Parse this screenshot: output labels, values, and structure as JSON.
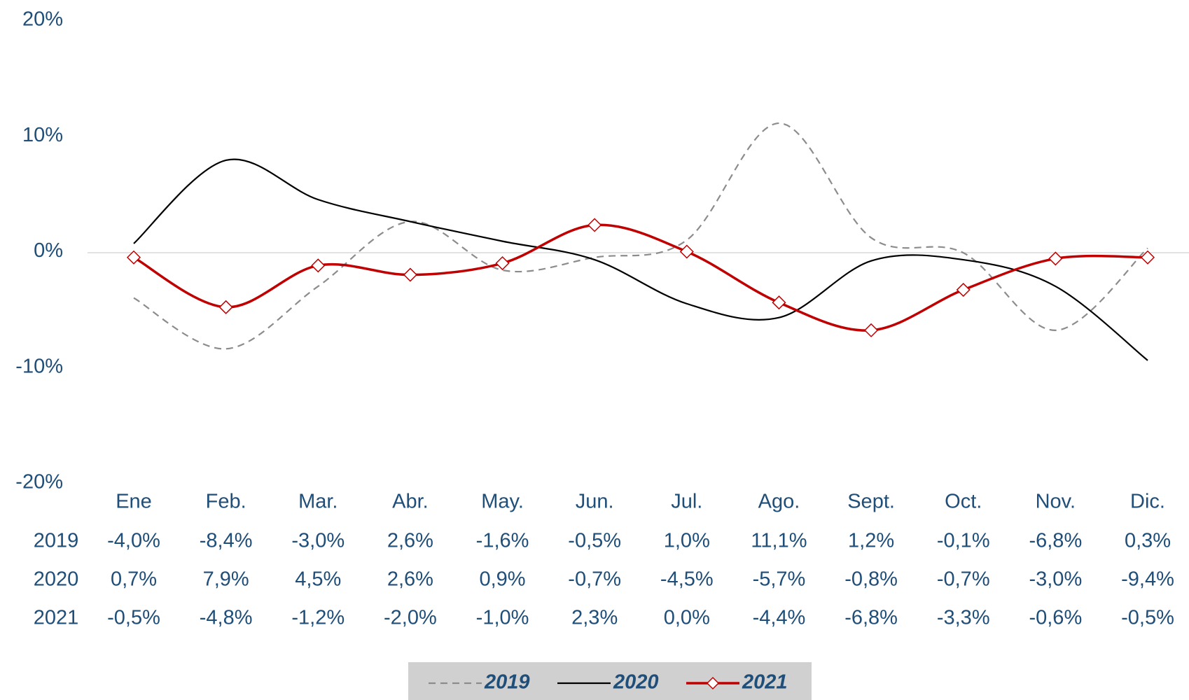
{
  "chart_data": {
    "type": "line",
    "categories": [
      "Ene",
      "Feb.",
      "Mar.",
      "Abr.",
      "May.",
      "Jun.",
      "Jul.",
      "Ago.",
      "Sept.",
      "Oct.",
      "Nov.",
      "Dic."
    ],
    "series": [
      {
        "name": "2019",
        "color": "#8c8c8c",
        "line_style": "dashed",
        "marker": "none",
        "values": [
          -4.0,
          -8.4,
          -3.0,
          2.6,
          -1.6,
          -0.5,
          1.0,
          11.1,
          1.2,
          -0.1,
          -6.8,
          0.3
        ],
        "value_labels": [
          "-4,0%",
          "-8,4%",
          "-3,0%",
          "2,6%",
          "-1,6%",
          "-0,5%",
          "1,0%",
          "11,1%",
          "1,2%",
          "-0,1%",
          "-6,8%",
          "0,3%"
        ]
      },
      {
        "name": "2020",
        "color": "#000000",
        "line_style": "solid",
        "marker": "none",
        "values": [
          0.7,
          7.9,
          4.5,
          2.6,
          0.9,
          -0.7,
          -4.5,
          -5.7,
          -0.8,
          -0.7,
          -3.0,
          -9.4
        ],
        "value_labels": [
          "0,7%",
          "7,9%",
          "4,5%",
          "2,6%",
          "0,9%",
          "-0,7%",
          "-4,5%",
          "-5,7%",
          "-0,8%",
          "-0,7%",
          "-3,0%",
          "-9,4%"
        ]
      },
      {
        "name": "2021",
        "color": "#c00000",
        "line_style": "solid",
        "marker": "diamond",
        "values": [
          -0.5,
          -4.8,
          -1.2,
          -2.0,
          -1.0,
          2.3,
          0.0,
          -4.4,
          -6.8,
          -3.3,
          -0.6,
          -0.5
        ],
        "value_labels": [
          "-0,5%",
          "-4,8%",
          "-1,2%",
          "-2,0%",
          "-1,0%",
          "2,3%",
          "0,0%",
          "-4,4%",
          "-6,8%",
          "-3,3%",
          "-0,6%",
          "-0,5%"
        ]
      }
    ],
    "ylim": [
      -20,
      20
    ],
    "yticks": [
      {
        "value": -20,
        "label": "-20%"
      },
      {
        "value": -10,
        "label": "-10%"
      },
      {
        "value": 0,
        "label": "0%"
      },
      {
        "value": 10,
        "label": "10%"
      },
      {
        "value": 20,
        "label": "20%"
      }
    ],
    "grid": false,
    "legend": "bottom"
  }
}
